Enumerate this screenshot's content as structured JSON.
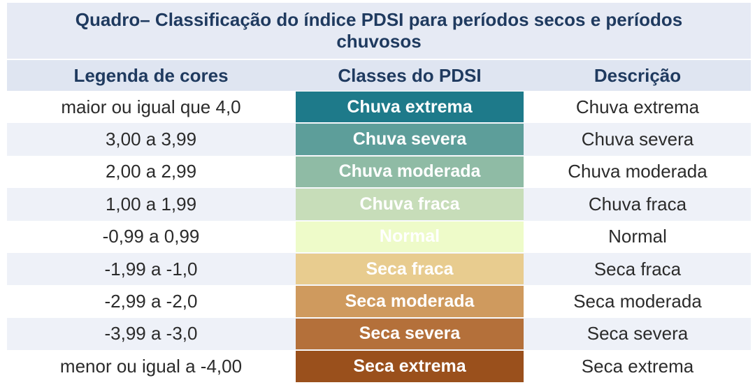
{
  "title": "Quadro– Classificação do índice PDSI para períodos secos e períodos chuvosos",
  "headers": {
    "legend": "Legenda de cores",
    "classes": "Classes do PDSI",
    "description": "Descrição"
  },
  "rows": [
    {
      "range": "maior ou igual que 4,0",
      "class": "Chuva extrema",
      "description": "Chuva extrema",
      "color": "#1e7a8a"
    },
    {
      "range": "3,00 a 3,99",
      "class": "Chuva severa",
      "description": "Chuva severa",
      "color": "#5d9e9a"
    },
    {
      "range": "2,00 a 2,99",
      "class": "Chuva moderada",
      "description": "Chuva moderada",
      "color": "#8fbba5"
    },
    {
      "range": "1,00 a 1,99",
      "class": "Chuva fraca",
      "description": "Chuva fraca",
      "color": "#c7ddb9"
    },
    {
      "range": "-0,99 a 0,99",
      "class": "Normal",
      "description": "Normal",
      "color": "#eefbc9"
    },
    {
      "range": "-1,99 a -1,0",
      "class": "Seca fraca",
      "description": "Seca fraca",
      "color": "#e8cc8f"
    },
    {
      "range": "-2,99 a -2,0",
      "class": "Seca moderada",
      "description": "Seca moderada",
      "color": "#cf9a5e"
    },
    {
      "range": "-3,99 a -3,0",
      "class": "Seca severa",
      "description": "Seca severa",
      "color": "#b4703a"
    },
    {
      "range": "menor ou igual a -4,00",
      "class": "Seca extrema",
      "description": "Seca extrema",
      "color": "#9a501c"
    }
  ]
}
